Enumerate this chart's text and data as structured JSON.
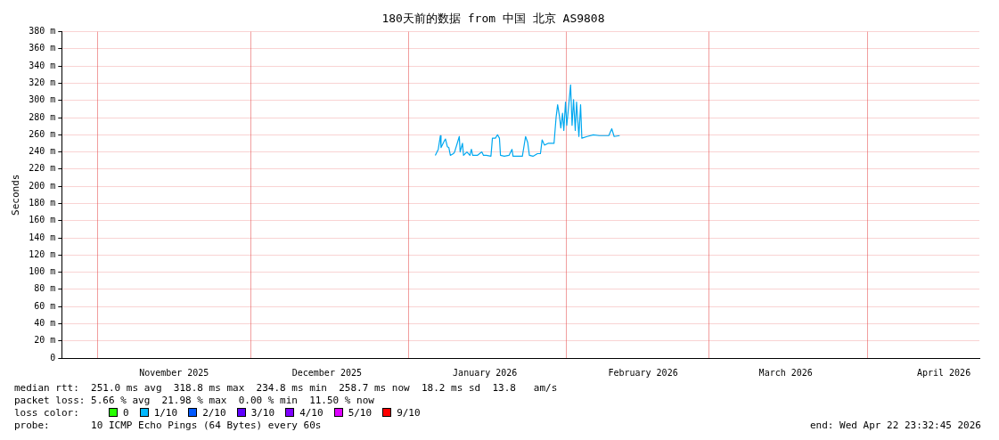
{
  "chart_data": {
    "type": "line",
    "title": "180天前的数据 from 中国 北京 AS9808",
    "ylabel": "Seconds",
    "xlim": [
      "2025-10-24T23:32",
      "2026-04-22T23:32"
    ],
    "xticks": [
      {
        "value": "2025-11-01",
        "label": null
      },
      {
        "value": "2025-11-16",
        "label": "November 2025"
      },
      {
        "value": "2025-12-01",
        "label": null
      },
      {
        "value": "2025-12-16",
        "label": "December 2025"
      },
      {
        "value": "2026-01-01",
        "label": null
      },
      {
        "value": "2026-01-16",
        "label": "January 2026"
      },
      {
        "value": "2026-02-01",
        "label": null
      },
      {
        "value": "2026-02-16",
        "label": "February 2026"
      },
      {
        "value": "2026-03-01",
        "label": null
      },
      {
        "value": "2026-03-16",
        "label": "March 2026"
      },
      {
        "value": "2026-04-01",
        "label": null
      },
      {
        "value": "2026-04-16",
        "label": "April 2026"
      }
    ],
    "ylim": [
      0,
      380
    ],
    "yticks": [
      0,
      {
        "value": 20,
        "label": "20 m"
      },
      {
        "value": 40,
        "label": "40 m"
      },
      {
        "value": 60,
        "label": "60 m"
      },
      {
        "value": 80,
        "label": "80 m"
      },
      {
        "value": 100,
        "label": "100 m"
      },
      {
        "value": 120,
        "label": "120 m"
      },
      {
        "value": 140,
        "label": "140 m"
      },
      {
        "value": 160,
        "label": "160 m"
      },
      {
        "value": 180,
        "label": "180 m"
      },
      {
        "value": 200,
        "label": "200 m"
      },
      {
        "value": 220,
        "label": "220 m"
      },
      {
        "value": 240,
        "label": "240 m"
      },
      {
        "value": 260,
        "label": "260 m"
      },
      {
        "value": 280,
        "label": "280 m"
      },
      {
        "value": 300,
        "label": "300 m"
      },
      {
        "value": 320,
        "label": "320 m"
      },
      {
        "value": 340,
        "label": "340 m"
      },
      {
        "value": 360,
        "label": "360 m"
      },
      {
        "value": 380,
        "label": "380 m"
      }
    ],
    "grid": true,
    "legend": false,
    "marker": "none",
    "line_style": "solid",
    "x": [
      "2026-01-06T06:00",
      "2026-01-06T20:00",
      "2026-01-07T06:00",
      "2026-01-07T09:00",
      "2026-01-08T01:00",
      "2026-01-08T06:00",
      "2026-01-08T15:00",
      "2026-01-08T22:00",
      "2026-01-09T05:00",
      "2026-01-09T19:00",
      "2026-01-10T01:00",
      "2026-01-10T23:00",
      "2026-01-11T03:00",
      "2026-01-11T14:00",
      "2026-01-11T19:00",
      "2026-01-12T11:00",
      "2026-01-13T01:00",
      "2026-01-13T08:00",
      "2026-01-13T14:00",
      "2026-01-14T12:00",
      "2026-01-15T09:00",
      "2026-01-15T17:00",
      "2026-01-16T06:00",
      "2026-01-17T04:00",
      "2026-01-17T11:00",
      "2026-01-18T01:00",
      "2026-01-18T11:00",
      "2026-01-18T20:00",
      "2026-01-19T01:00",
      "2026-01-19T19:00",
      "2026-01-20T17:00",
      "2026-01-21T07:00",
      "2026-01-21T12:00",
      "2026-01-22T11:00",
      "2026-01-23T08:00",
      "2026-01-23T23:00",
      "2026-01-24T09:00",
      "2026-01-24T17:00",
      "2026-01-25T10:00",
      "2026-01-26T07:00",
      "2026-01-26T21:00",
      "2026-01-27T05:00",
      "2026-01-27T16:00",
      "2026-01-28T09:00",
      "2026-01-29T13:00",
      "2026-01-29T23:00",
      "2026-01-30T06:00",
      "2026-01-30T15:00",
      "2026-01-30T21:00",
      "2026-01-31T05:00",
      "2026-01-31T11:00",
      "2026-01-31T19:00",
      "2026-02-01T01:00",
      "2026-02-01T09:00",
      "2026-02-01T19:00",
      "2026-02-02T02:00",
      "2026-02-02T09:00",
      "2026-02-02T17:00",
      "2026-02-02T23:00",
      "2026-02-03T10:00",
      "2026-02-03T18:00",
      "2026-02-04T00:00",
      "2026-02-05T01:00",
      "2026-02-06T06:00",
      "2026-02-07T10:00",
      "2026-02-08T14:00",
      "2026-02-09T07:00",
      "2026-02-09T21:00",
      "2026-02-10T08:00",
      "2026-02-11T10:00"
    ],
    "series": [
      {
        "color": "#00a8f0",
        "values": [
          236,
          243,
          259,
          245,
          253,
          255,
          246,
          245,
          236,
          238,
          240,
          258,
          240,
          250,
          236,
          240,
          236,
          243,
          236,
          236,
          240,
          236,
          236,
          235,
          256,
          256,
          260,
          256,
          236,
          235,
          236,
          243,
          235,
          235,
          235,
          258,
          251,
          236,
          235,
          238,
          238,
          254,
          248,
          250,
          250,
          281,
          295,
          281,
          268,
          285,
          265,
          298,
          271,
          291,
          318,
          271,
          301,
          265,
          298,
          258,
          295,
          256,
          258,
          260,
          259,
          259,
          259,
          267,
          258,
          259
        ]
      }
    ],
    "annotations": [
      "median rtt:  251.0 ms avg  318.8 ms max  234.8 ms min  258.7 ms now  18.2 ms sd  13.8   am/s",
      "packet loss: 5.66 % avg  21.98 % max  0.00 % min  11.50 % now",
      "loss color:",
      "0",
      "1/10",
      "2/10",
      "3/10",
      "4/10",
      "5/10",
      "9/10",
      "probe:       10 ICMP Echo Pings (64 Bytes) every 60s",
      "end: Wed Apr 22 23:32:45 2026"
    ]
  }
}
